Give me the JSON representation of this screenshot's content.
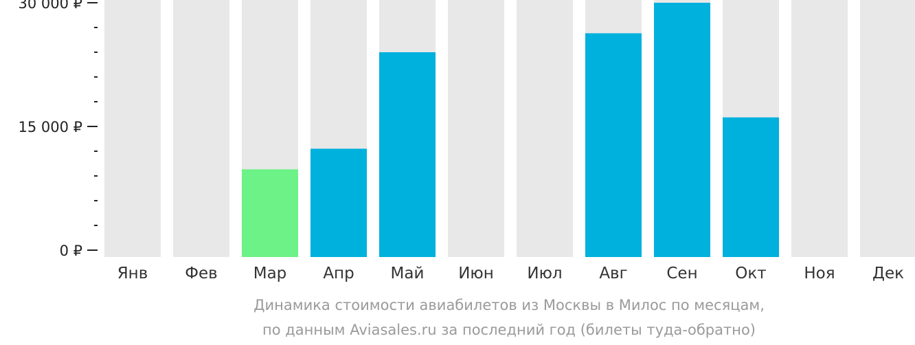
{
  "chart_data": {
    "type": "bar",
    "categories": [
      "Янв",
      "Фев",
      "Мар",
      "Апр",
      "Май",
      "Июн",
      "Июл",
      "Авг",
      "Сен",
      "Окт",
      "Ноя",
      "Дек"
    ],
    "values": [
      null,
      null,
      9800,
      12300,
      24000,
      null,
      null,
      26300,
      30000,
      16100,
      null,
      null
    ],
    "ylim": [
      0,
      30000
    ],
    "yticks": [
      {
        "value": 0,
        "label": "0 ₽"
      },
      {
        "value": 15000,
        "label": "15 000 ₽"
      },
      {
        "value": 30000,
        "label": "30 000 ₽"
      }
    ],
    "minor_ticks": [
      3000,
      6000,
      9000,
      12000,
      18000,
      21000,
      24000,
      27000
    ],
    "grid": false,
    "legend": "none",
    "colors": {
      "background_bar": "#e8e8e8",
      "bar": "#00b0dd",
      "lowest_bar": "#6cf286",
      "axis": "#222222"
    },
    "lowest_index": 2
  },
  "caption": {
    "line1": "Динамика стоимости авиабилетов из Москвы в Милос по месяцам,",
    "line2": "по данным Aviasales.ru за последний год (билеты туда-обратно)"
  }
}
